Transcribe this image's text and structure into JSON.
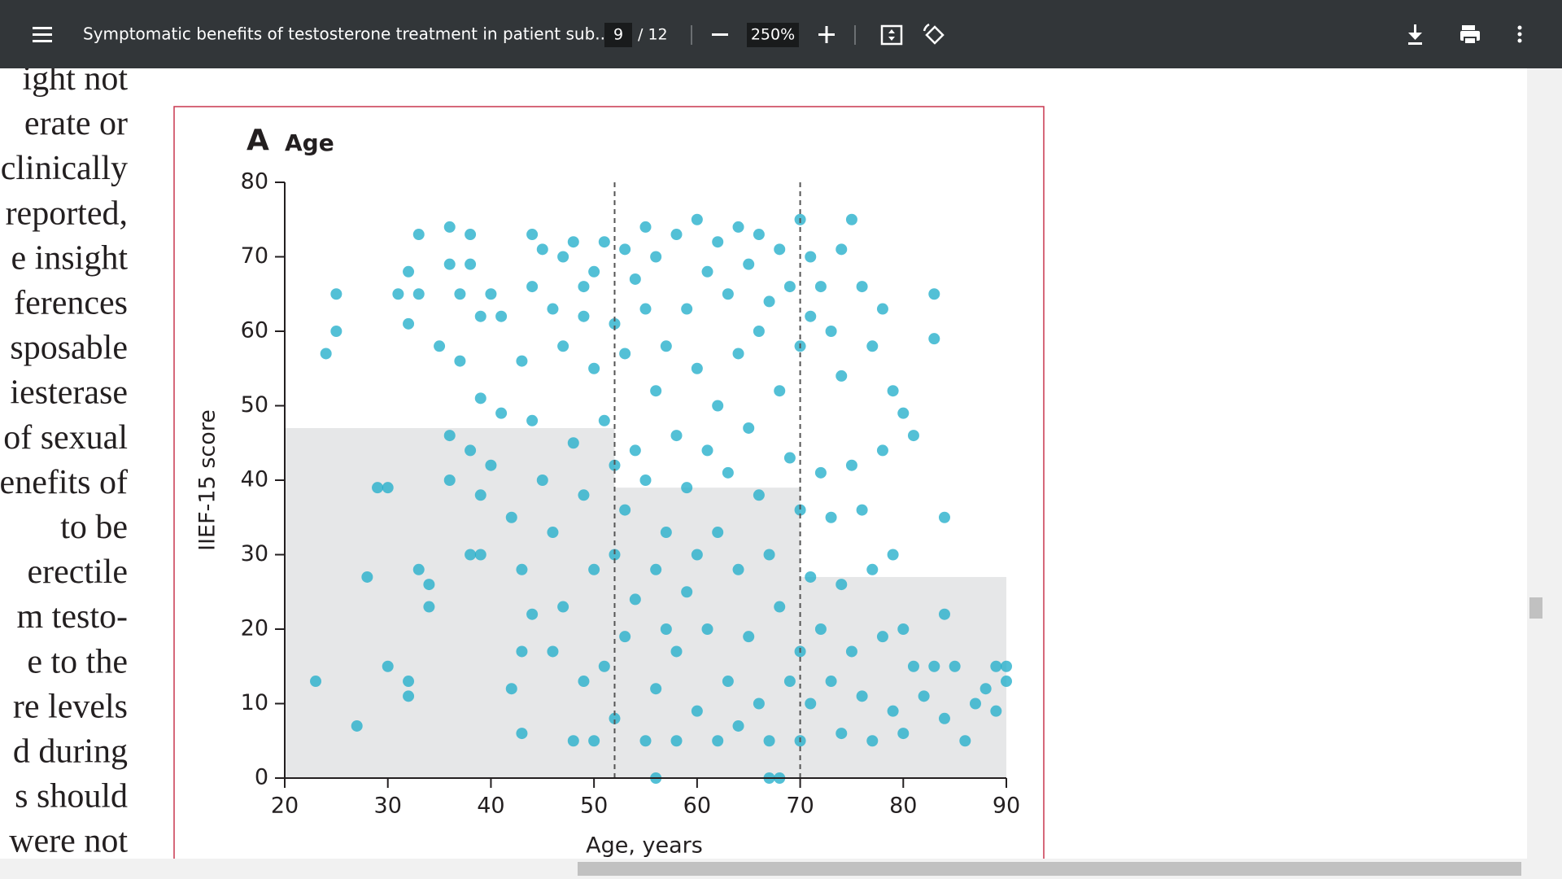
{
  "toolbar": {
    "title": "Symptomatic benefits of testosterone treatment in patient sub...",
    "page": "9",
    "page_total": "/ 12",
    "zoom": "250%"
  },
  "page_text": {
    "lines": [
      "ight not",
      "erate or",
      "clinically",
      "reported,",
      "e insight",
      "ferences",
      "sposable",
      "iesterase",
      "of sexual",
      "enefits of",
      "to be",
      "erectile",
      "m testo-",
      "e to the",
      "re levels",
      "d during",
      "s should",
      "were not"
    ]
  },
  "chart_data": {
    "type": "scatter",
    "panel_label": "A",
    "title": "Age",
    "x_label": "Age, years",
    "y_label": "IIEF-15 score",
    "xlim": [
      20,
      90
    ],
    "ylim": [
      0,
      80
    ],
    "xticks": [
      20,
      30,
      40,
      50,
      60,
      70,
      80,
      90
    ],
    "yticks": [
      0,
      10,
      20,
      30,
      40,
      50,
      60,
      70,
      80
    ],
    "color": "#22aecb",
    "shaded_regions": [
      {
        "x": [
          20,
          52
        ],
        "y": 47
      },
      {
        "x": [
          52,
          70
        ],
        "y": 39
      },
      {
        "x": [
          70,
          90
        ],
        "y": 27
      }
    ],
    "vlines": [
      52,
      70
    ],
    "x": [
      24,
      25,
      25,
      23,
      27,
      28,
      29,
      30,
      30,
      31,
      32,
      32,
      32,
      32,
      33,
      33,
      33,
      34,
      34,
      35,
      36,
      36,
      36,
      36,
      37,
      37,
      38,
      38,
      38,
      38,
      39,
      39,
      39,
      39,
      40,
      40,
      41,
      41,
      42,
      42,
      43,
      43,
      43,
      43,
      44,
      44,
      44,
      44,
      45,
      45,
      46,
      46,
      46,
      47,
      47,
      47,
      48,
      48,
      48,
      49,
      49,
      49,
      49,
      50,
      50,
      50,
      50,
      51,
      51,
      51,
      52,
      52,
      52,
      52,
      53,
      53,
      53,
      53,
      54,
      54,
      54,
      55,
      55,
      55,
      55,
      56,
      56,
      56,
      56,
      57,
      57,
      57,
      58,
      58,
      58,
      58,
      59,
      59,
      59,
      60,
      60,
      60,
      60,
      61,
      61,
      61,
      62,
      62,
      62,
      62,
      63,
      63,
      63,
      64,
      64,
      64,
      64,
      65,
      65,
      65,
      66,
      66,
      66,
      66,
      67,
      67,
      67,
      68,
      68,
      68,
      68,
      69,
      69,
      69,
      70,
      70,
      70,
      70,
      70,
      71,
      71,
      71,
      71,
      72,
      72,
      72,
      73,
      73,
      73,
      74,
      74,
      74,
      74,
      75,
      75,
      75,
      76,
      76,
      76,
      77,
      77,
      77,
      78,
      78,
      78,
      79,
      79,
      79,
      80,
      80,
      80,
      81,
      81,
      82,
      83,
      83,
      83,
      84,
      84,
      84,
      85,
      86,
      87,
      88,
      89,
      89,
      90,
      90,
      56,
      67
    ],
    "values": [
      57,
      65,
      60,
      13,
      7,
      27,
      39,
      39,
      15,
      65,
      61,
      68,
      13,
      11,
      73,
      65,
      28,
      26,
      23,
      58,
      74,
      69,
      46,
      40,
      65,
      56,
      73,
      69,
      44,
      30,
      62,
      51,
      38,
      30,
      65,
      42,
      62,
      49,
      35,
      12,
      56,
      28,
      17,
      6,
      73,
      66,
      48,
      22,
      71,
      40,
      63,
      33,
      17,
      70,
      58,
      23,
      72,
      45,
      5,
      66,
      62,
      38,
      13,
      68,
      55,
      28,
      5,
      72,
      48,
      15,
      61,
      42,
      30,
      8,
      71,
      57,
      36,
      19,
      67,
      44,
      24,
      74,
      63,
      40,
      5,
      70,
      52,
      28,
      12,
      58,
      33,
      20,
      73,
      46,
      17,
      5,
      63,
      39,
      25,
      75,
      55,
      30,
      9,
      68,
      44,
      20,
      72,
      50,
      33,
      5,
      65,
      41,
      13,
      74,
      57,
      28,
      7,
      69,
      47,
      19,
      73,
      60,
      38,
      10,
      64,
      30,
      5,
      71,
      52,
      23,
      0,
      66,
      43,
      13,
      75,
      58,
      36,
      17,
      5,
      70,
      62,
      27,
      10,
      66,
      41,
      20,
      60,
      35,
      13,
      71,
      54,
      26,
      6,
      75,
      42,
      17,
      66,
      36,
      11,
      58,
      28,
      5,
      63,
      44,
      19,
      52,
      30,
      9,
      49,
      20,
      6,
      46,
      15,
      11,
      65,
      59,
      15,
      35,
      22,
      8,
      15,
      5,
      10,
      12,
      15,
      9,
      15,
      13,
      0,
      0
    ]
  }
}
